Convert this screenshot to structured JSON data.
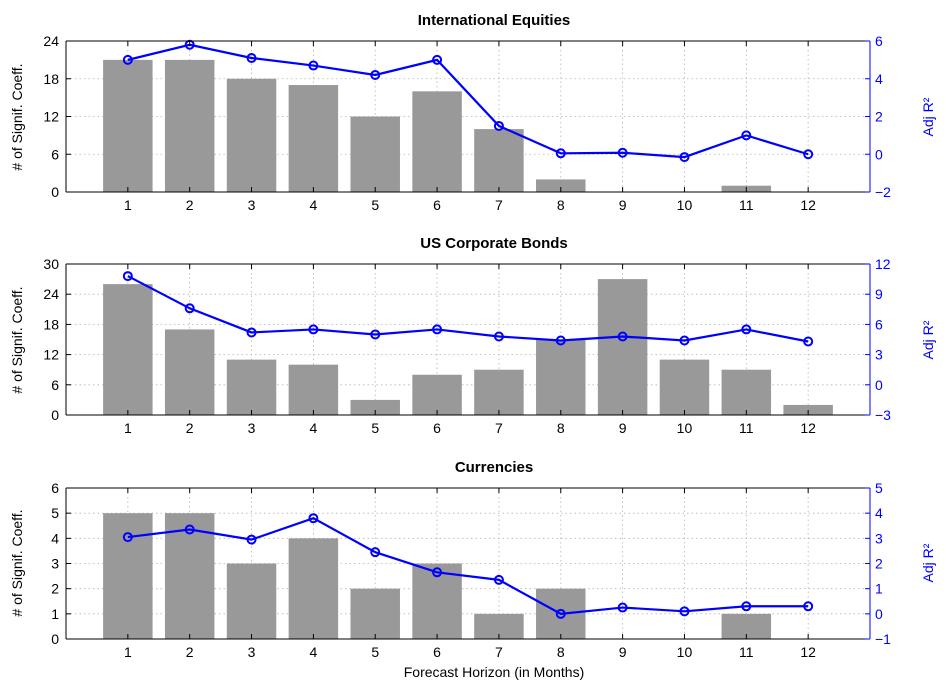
{
  "chart_data": [
    {
      "type": "bar",
      "title": "International Equities",
      "xlabel": "",
      "ylabel": "# of Signif. Coeff.",
      "y2label": "Adj R²",
      "categories": [
        "1",
        "2",
        "3",
        "4",
        "5",
        "6",
        "7",
        "8",
        "9",
        "10",
        "11",
        "12"
      ],
      "xlim": [
        0,
        13
      ],
      "ylim": [
        0,
        24
      ],
      "yticks": [
        0,
        6,
        12,
        18,
        24
      ],
      "y2lim": [
        -2,
        6
      ],
      "y2ticks": [
        -2,
        0,
        2,
        4,
        6
      ],
      "grid": true,
      "series": [
        {
          "kind": "bar",
          "axis": "left",
          "color": "#999999",
          "values": [
            21,
            21,
            18,
            17,
            12,
            16,
            10,
            2,
            0,
            0,
            1,
            0
          ]
        },
        {
          "kind": "line",
          "axis": "right",
          "color": "#0000ff",
          "marker": "circle",
          "values": [
            5.0,
            5.8,
            5.1,
            4.7,
            4.2,
            5.0,
            1.5,
            0.05,
            0.08,
            -0.15,
            1.0,
            0.0
          ]
        }
      ]
    },
    {
      "type": "bar",
      "title": "US Corporate Bonds",
      "xlabel": "",
      "ylabel": "# of Signif. Coeff.",
      "y2label": "Adj R²",
      "categories": [
        "1",
        "2",
        "3",
        "4",
        "5",
        "6",
        "7",
        "8",
        "9",
        "10",
        "11",
        "12"
      ],
      "xlim": [
        0,
        13
      ],
      "ylim": [
        0,
        30
      ],
      "yticks": [
        0,
        6,
        12,
        18,
        24,
        30
      ],
      "y2lim": [
        -3,
        12
      ],
      "y2ticks": [
        -3,
        0,
        3,
        6,
        9,
        12
      ],
      "grid": true,
      "series": [
        {
          "kind": "bar",
          "axis": "left",
          "color": "#999999",
          "values": [
            26,
            17,
            11,
            10,
            3,
            8,
            9,
            15,
            27,
            11,
            9,
            2
          ]
        },
        {
          "kind": "line",
          "axis": "right",
          "color": "#0000ff",
          "marker": "circle",
          "values": [
            10.8,
            7.6,
            5.2,
            5.5,
            5.0,
            5.5,
            4.8,
            4.4,
            4.8,
            4.4,
            5.5,
            4.3
          ]
        }
      ]
    },
    {
      "type": "bar",
      "title": "Currencies",
      "xlabel": "Forecast Horizon (in Months)",
      "ylabel": "# of Signif. Coeff.",
      "y2label": "Adj R²",
      "categories": [
        "1",
        "2",
        "3",
        "4",
        "5",
        "6",
        "7",
        "8",
        "9",
        "10",
        "11",
        "12"
      ],
      "xlim": [
        0,
        13
      ],
      "ylim": [
        0,
        6
      ],
      "yticks": [
        0,
        1,
        2,
        3,
        4,
        5,
        6
      ],
      "y2lim": [
        -1,
        5
      ],
      "y2ticks": [
        -1,
        0,
        1,
        2,
        3,
        4,
        5
      ],
      "grid": true,
      "series": [
        {
          "kind": "bar",
          "axis": "left",
          "color": "#999999",
          "values": [
            5,
            5,
            3,
            4,
            2,
            3,
            1,
            2,
            0,
            0,
            1,
            0
          ]
        },
        {
          "kind": "line",
          "axis": "right",
          "color": "#0000ff",
          "marker": "circle",
          "values": [
            3.05,
            3.35,
            2.95,
            3.8,
            2.45,
            1.65,
            1.35,
            0.0,
            0.25,
            0.1,
            0.3,
            0.3
          ]
        }
      ]
    }
  ]
}
